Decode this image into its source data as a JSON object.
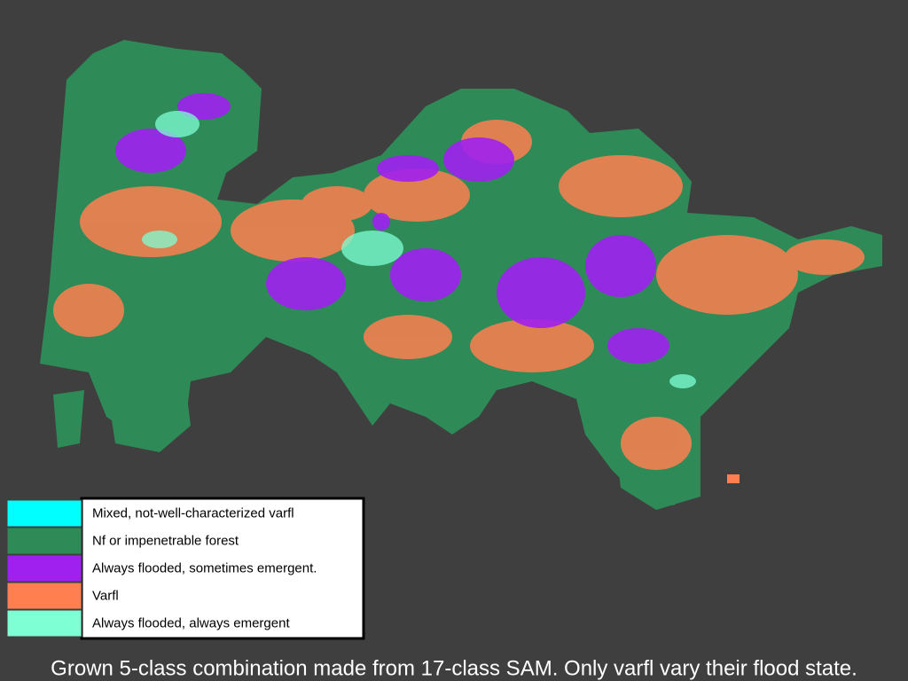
{
  "legend": {
    "items": [
      {
        "label": "Mixed, not-well-characterized varfl",
        "color": "#00ffff"
      },
      {
        "label": "Nf or impenetrable forest",
        "color": "#2e8b57"
      },
      {
        "label": "Always flooded, sometimes emergent.",
        "color": "#a020f0"
      },
      {
        "label": "Varfl",
        "color": "#ff7f50"
      },
      {
        "label": "Always flooded, always emergent",
        "color": "#7fffd4"
      }
    ]
  },
  "caption": "Grown 5-class combination made from 17-class SAM.  Only varfl vary their flood state."
}
